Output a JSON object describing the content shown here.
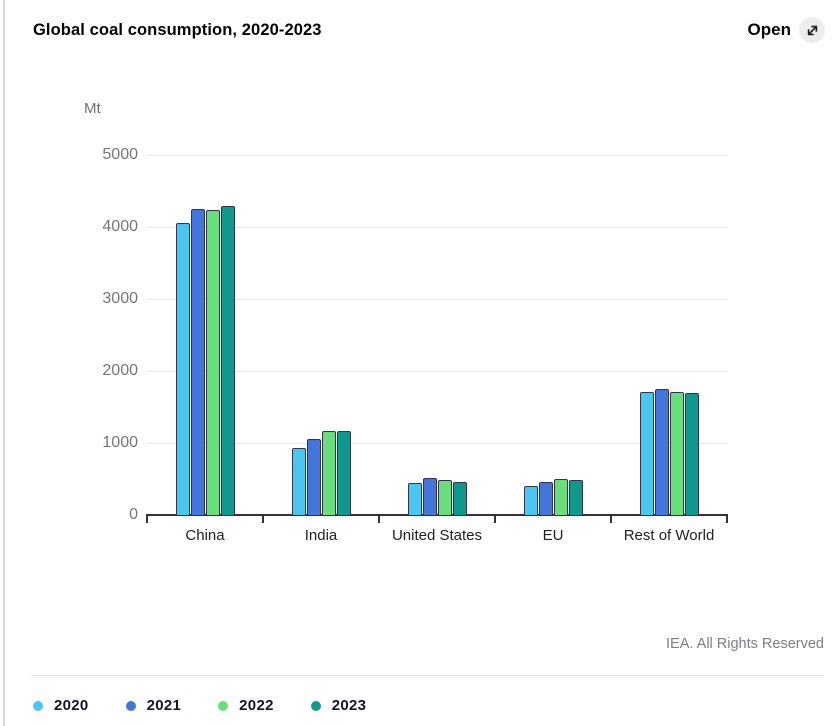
{
  "header": {
    "title": "Global coal consumption, 2020-2023",
    "open_label": "Open"
  },
  "chart_data": {
    "type": "bar",
    "title": "Global coal consumption, 2020-2023",
    "unit_label": "Mt",
    "categories": [
      "China",
      "India",
      "United States",
      "EU",
      "Rest of World"
    ],
    "series": [
      {
        "name": "2020",
        "color": "#4BC6F1",
        "values": [
          4060,
          930,
          440,
          400,
          1715
        ]
      },
      {
        "name": "2021",
        "color": "#4475DB",
        "values": [
          4250,
          1050,
          510,
          455,
          1745
        ]
      },
      {
        "name": "2022",
        "color": "#6ADD7C",
        "values": [
          4230,
          1160,
          490,
          495,
          1715
        ]
      },
      {
        "name": "2023",
        "color": "#0F988C",
        "values": [
          4290,
          1170,
          460,
          480,
          1700
        ]
      }
    ],
    "ylim": [
      0,
      5000
    ],
    "yticks": [
      0,
      1000,
      2000,
      3000,
      4000,
      5000
    ],
    "grid": true,
    "legend_position": "bottom"
  },
  "footer": {
    "copyright": "IEA. All Rights Reserved"
  }
}
